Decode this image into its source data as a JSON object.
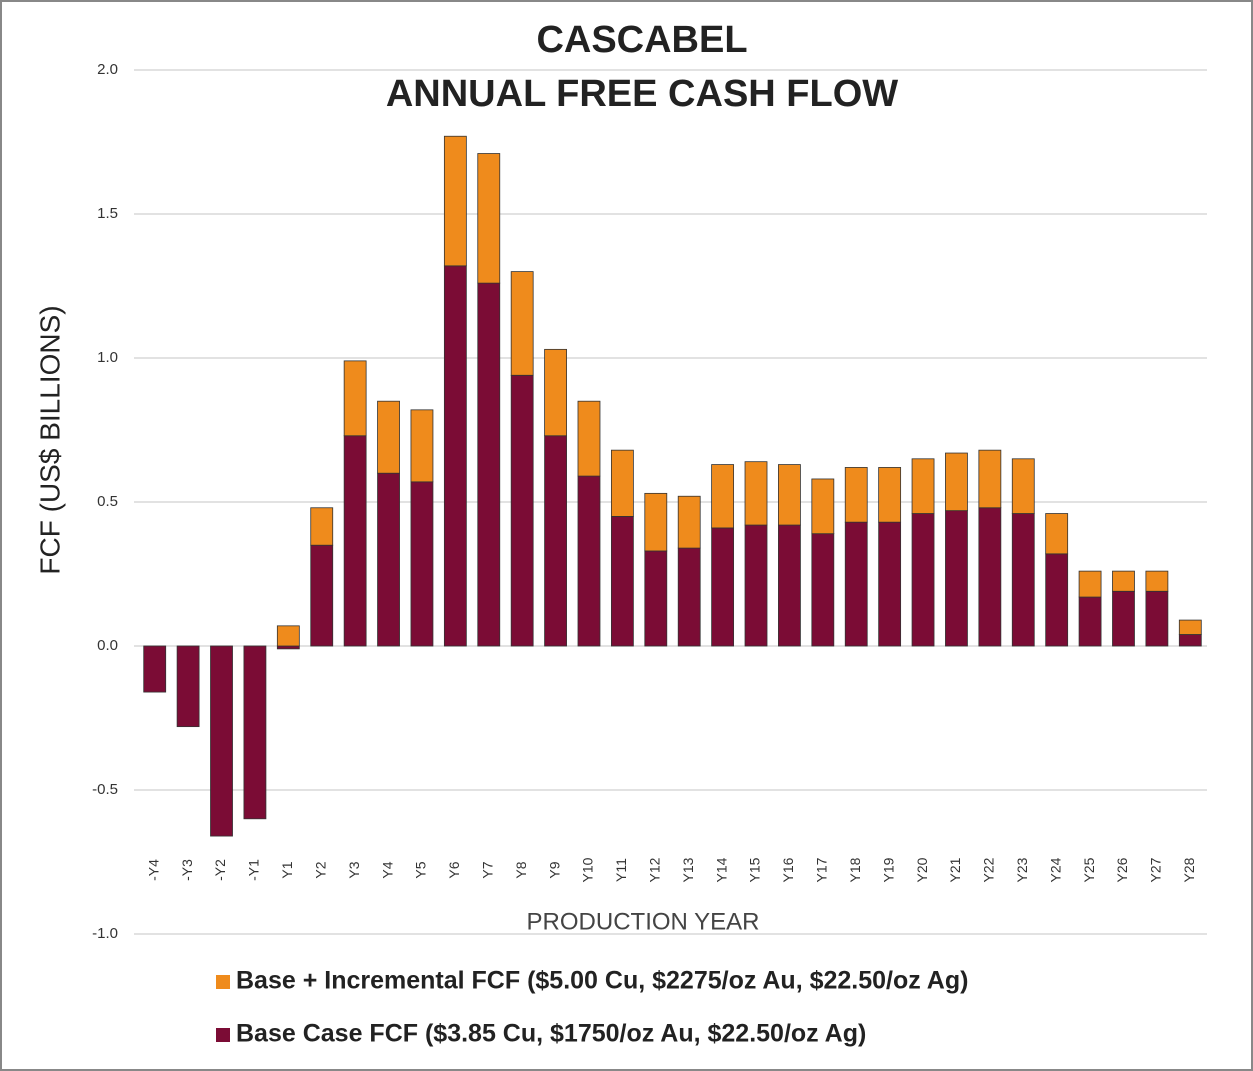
{
  "chart_data": {
    "type": "stacked_bar",
    "title": "CASCABEL",
    "subtitle": "ANNUAL FREE CASH FLOW",
    "y_label": "FCF (US$ BILLIONS)",
    "x_label": "PRODUCTION YEAR",
    "categories": [
      "-Y4",
      "-Y3",
      "-Y2",
      "-Y1",
      "Y1",
      "Y2",
      "Y3",
      "Y4",
      "Y5",
      "Y6",
      "Y7",
      "Y8",
      "Y9",
      "Y10",
      "Y11",
      "Y12",
      "Y13",
      "Y14",
      "Y15",
      "Y16",
      "Y17",
      "Y18",
      "Y19",
      "Y20",
      "Y21",
      "Y22",
      "Y23",
      "Y24",
      "Y25",
      "Y26",
      "Y27",
      "Y28"
    ],
    "series": [
      {
        "name": "Base Case FCF ($3.85 Cu, $1750/oz Au, $22.50/oz Ag)",
        "color": "#7b0c35",
        "values": [
          -0.16,
          -0.28,
          -0.66,
          -0.6,
          -0.01,
          0.35,
          0.73,
          0.6,
          0.57,
          1.32,
          1.26,
          0.94,
          0.73,
          0.59,
          0.45,
          0.33,
          0.34,
          0.41,
          0.42,
          0.42,
          0.39,
          0.43,
          0.43,
          0.46,
          0.47,
          0.48,
          0.46,
          0.32,
          0.17,
          0.19,
          0.19,
          0.04
        ]
      },
      {
        "name": "Base + Incremental FCF ($5.00 Cu, $2275/oz Au, $22.50/oz Ag)",
        "color": "#ef8b1c",
        "values": [
          0,
          0,
          0,
          0,
          0.07,
          0.13,
          0.26,
          0.25,
          0.25,
          0.45,
          0.45,
          0.36,
          0.3,
          0.26,
          0.23,
          0.2,
          0.18,
          0.22,
          0.22,
          0.21,
          0.19,
          0.19,
          0.19,
          0.19,
          0.2,
          0.2,
          0.19,
          0.14,
          0.09,
          0.07,
          0.07,
          0.05
        ]
      }
    ],
    "ylim": [
      -1,
      2
    ],
    "yticks": [
      {
        "value": -1,
        "label": "-1.0"
      },
      -0.5,
      {
        "value": 0,
        "label": "0.0"
      },
      0.5,
      {
        "value": 1,
        "label": "1.0"
      },
      1.5,
      {
        "value": 2,
        "label": "2.0"
      }
    ],
    "grid": true
  }
}
